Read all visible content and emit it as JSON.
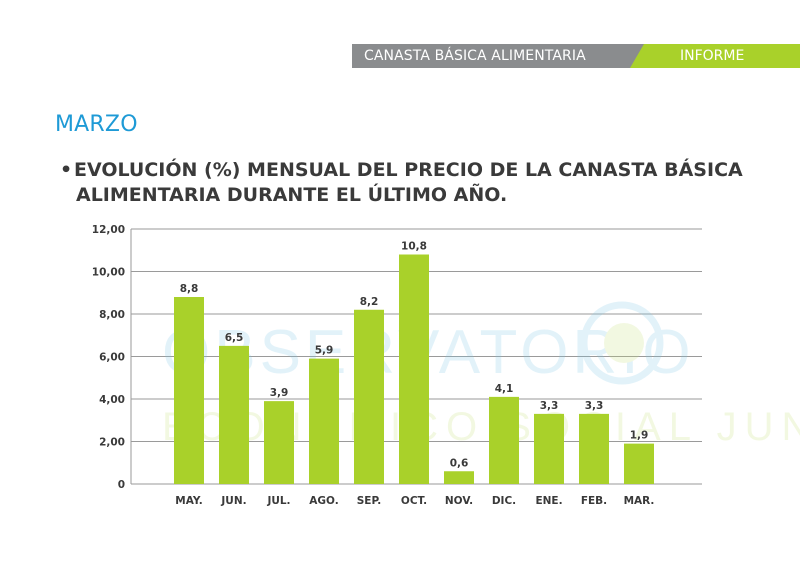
{
  "header": {
    "section_label": "CANASTA BÁSICA ALIMENTARIA",
    "tag_label": "INFORME"
  },
  "page": {
    "month_title": "MARZO",
    "bullet": "•",
    "heading_line1": "EVOLUCIÓN (%) MENSUAL DEL PRECIO DE LA CANASTA BÁSICA",
    "heading_line2": "ALIMENTARIA DURANTE EL ÚLTIMO AÑO."
  },
  "watermark": {
    "line1": "OBSERVATORIO",
    "line2": "ECONÓMICO SOCIAL JUNÍN"
  },
  "colors": {
    "bar": "#a9d12a",
    "accent_blue": "#1e9ad6",
    "header_gray": "#8a8c8e",
    "grid": "#9a9a9a",
    "text": "#3a3a3a"
  },
  "chart_data": {
    "type": "bar",
    "categories": [
      "MAY.",
      "JUN.",
      "JUL.",
      "AGO.",
      "SEP.",
      "OCT.",
      "NOV.",
      "DIC.",
      "ENE.",
      "FEB.",
      "MAR."
    ],
    "values": [
      8.8,
      6.5,
      3.9,
      5.9,
      8.2,
      10.8,
      0.6,
      4.1,
      3.3,
      3.3,
      1.9
    ],
    "value_labels": [
      "8,8",
      "6,5",
      "3,9",
      "5,9",
      "8,2",
      "10,8",
      "0,6",
      "4,1",
      "3,3",
      "3,3",
      "1,9"
    ],
    "ylim": [
      0,
      12
    ],
    "yticks": [
      0,
      2,
      4,
      6,
      8,
      10,
      12
    ],
    "ytick_labels": [
      "0",
      "2,00",
      "4,00",
      "6,00",
      "8,00",
      "10,00",
      "12,00"
    ],
    "grid": true,
    "legend": "none"
  }
}
